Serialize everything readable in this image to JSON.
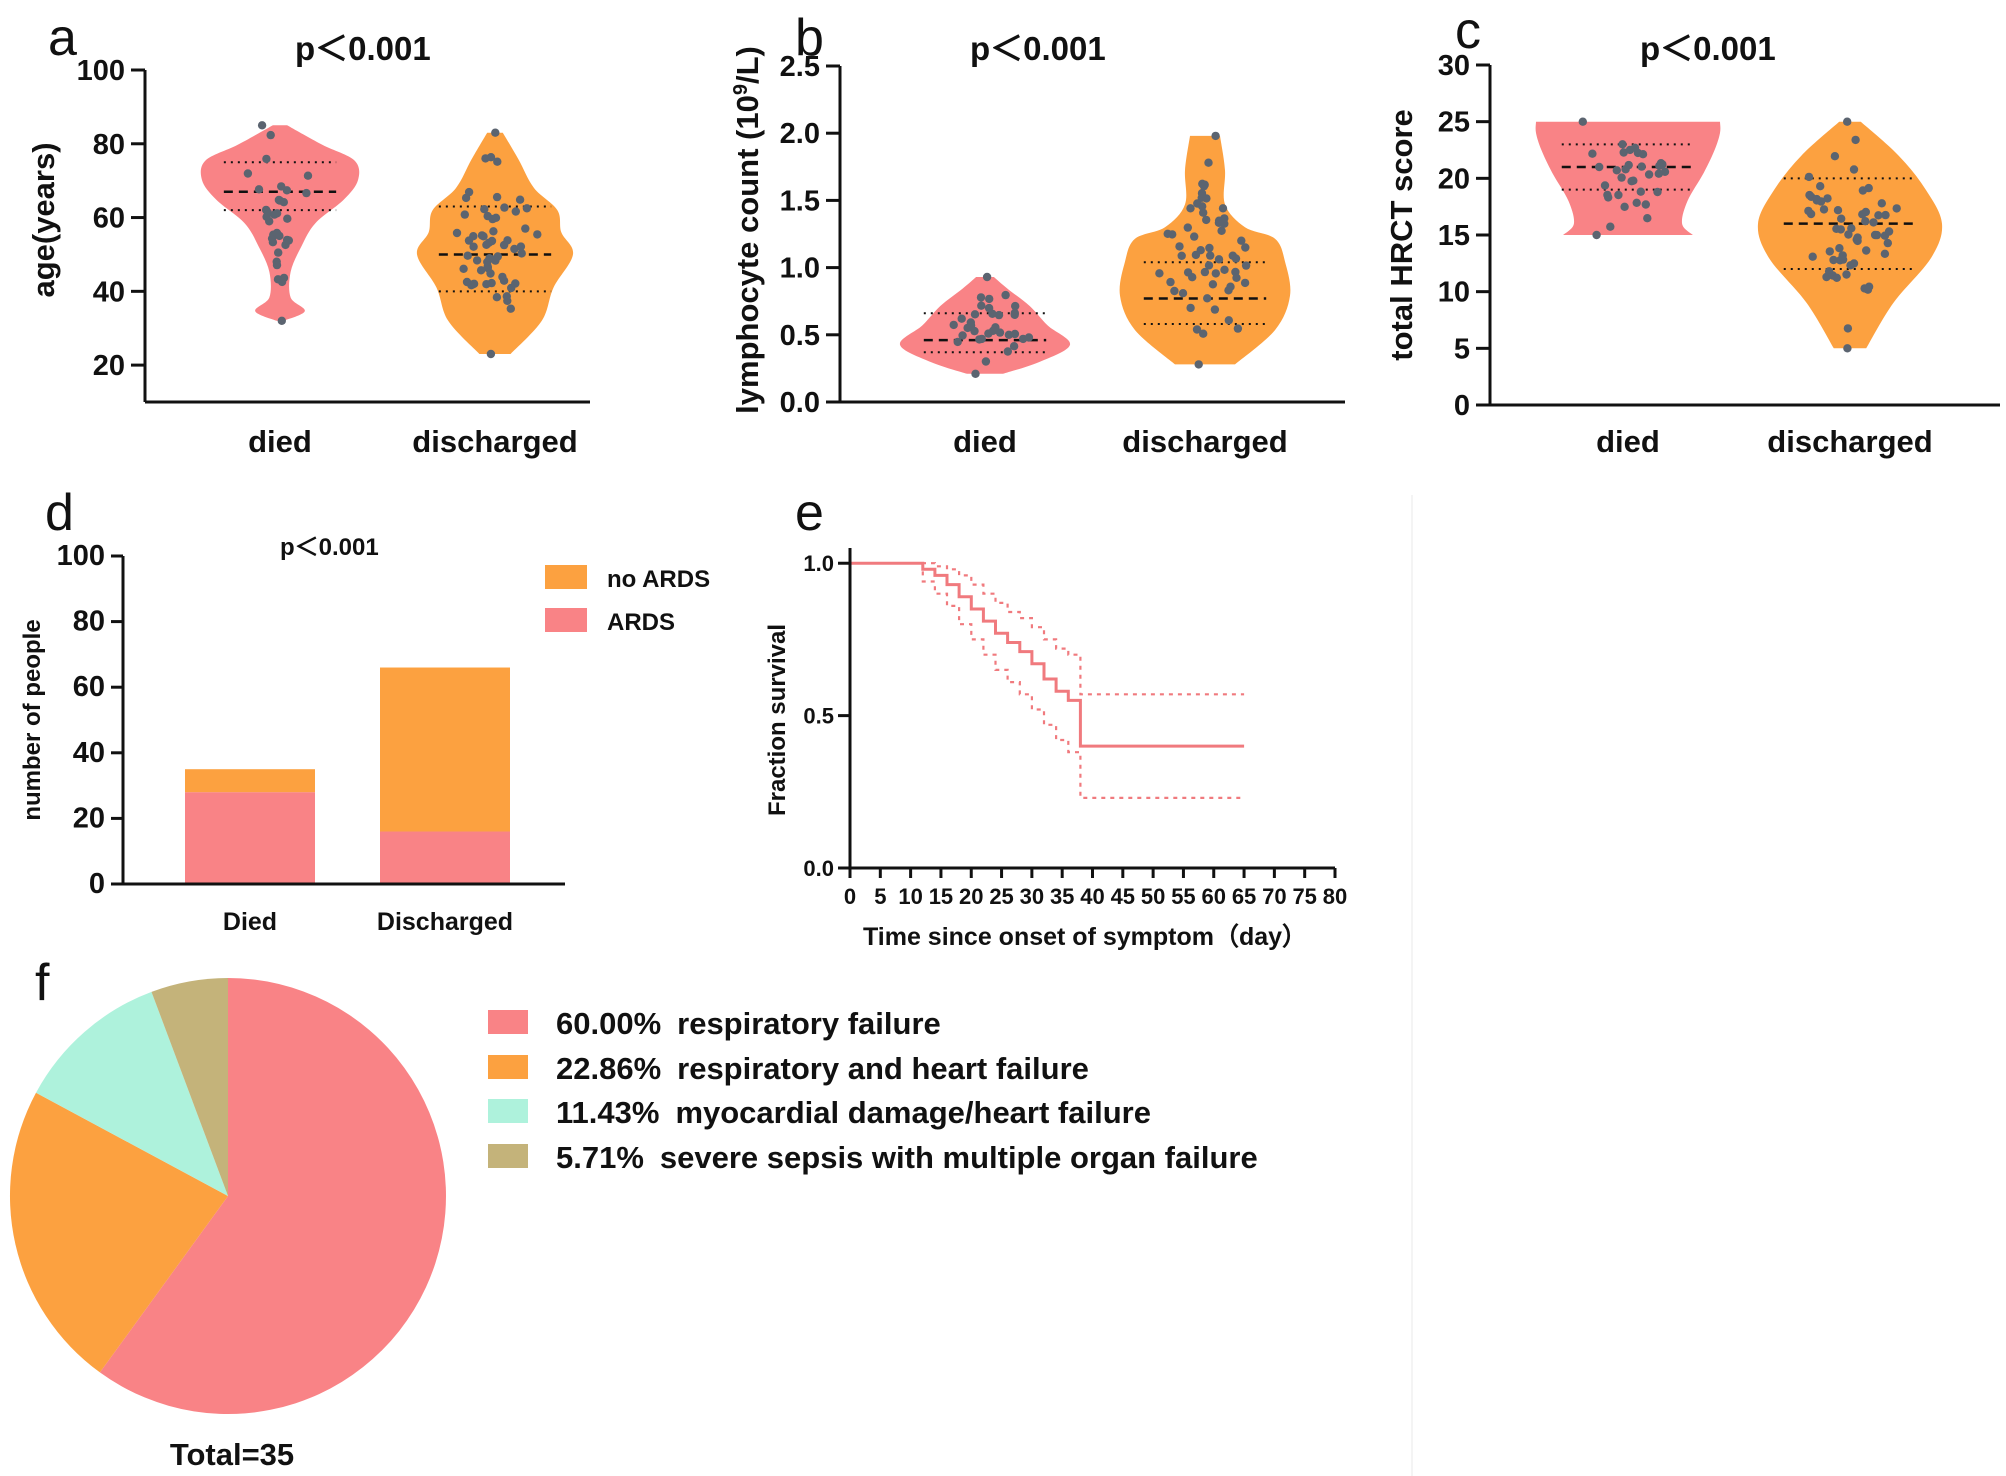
{
  "colors": {
    "died": "#f98386",
    "discharged": "#fca140",
    "teal": "#aef2dc",
    "olive": "#c4b37a",
    "km": "#f07a7e"
  },
  "chart_data": [
    {
      "panel": "a",
      "type": "violin",
      "p_text": "p<0.001",
      "ylabel": "age(years)",
      "ylim": [
        10,
        100
      ],
      "yticks": [
        20,
        40,
        60,
        80,
        100
      ],
      "categories": [
        "died",
        "discharged"
      ],
      "series": [
        {
          "name": "died",
          "min": 32,
          "max": 85,
          "median": 67,
          "q1": 62,
          "q3": 75
        },
        {
          "name": "discharged",
          "min": 23,
          "max": 83,
          "median": 50,
          "q1": 40,
          "q3": 63
        }
      ]
    },
    {
      "panel": "b",
      "type": "violin",
      "p_text": "p<0.001",
      "ylabel_main": "lymphocyte count (10",
      "ylabel_sup": "9",
      "ylabel_tail": "/L)",
      "ylim": [
        0,
        2.5
      ],
      "yticks": [
        "0.0",
        "0.5",
        "1.0",
        "1.5",
        "2.0",
        "2.5"
      ],
      "categories": [
        "died",
        "discharged"
      ],
      "series": [
        {
          "name": "died",
          "min": 0.21,
          "max": 0.93,
          "median": 0.46,
          "q1": 0.37,
          "q3": 0.66
        },
        {
          "name": "discharged",
          "min": 0.28,
          "max": 1.98,
          "median": 0.77,
          "q1": 0.58,
          "q3": 1.04
        }
      ]
    },
    {
      "panel": "c",
      "type": "violin",
      "p_text": "p<0.001",
      "ylabel": "total HRCT score",
      "ylim": [
        0,
        30
      ],
      "yticks": [
        0,
        5,
        10,
        15,
        20,
        25,
        30
      ],
      "categories": [
        "died",
        "discharged"
      ],
      "series": [
        {
          "name": "died",
          "min": 15,
          "max": 25,
          "median": 21,
          "q1": 19,
          "q3": 23
        },
        {
          "name": "discharged",
          "min": 5,
          "max": 25,
          "median": 16,
          "q1": 12,
          "q3": 20
        }
      ]
    },
    {
      "panel": "d",
      "type": "bar",
      "stacked": true,
      "p_text": "p<0.001",
      "ylabel": "number of people",
      "ylim": [
        0,
        100
      ],
      "yticks": [
        0,
        20,
        40,
        60,
        80,
        100
      ],
      "categories": [
        "Died",
        "Discharged"
      ],
      "series": [
        {
          "name": "ARDS",
          "values": [
            28,
            16
          ]
        },
        {
          "name": "no ARDS",
          "values": [
            7,
            50
          ]
        }
      ],
      "legend": [
        "no ARDS",
        "ARDS"
      ]
    },
    {
      "panel": "e",
      "type": "line",
      "subtype": "kaplan-meier",
      "xlabel": "Time since onset of symptom（day）",
      "ylabel": "Fraction survival",
      "xlim": [
        0,
        80
      ],
      "ylim": [
        0,
        1.05
      ],
      "xticks": [
        0,
        5,
        10,
        15,
        20,
        25,
        30,
        35,
        40,
        45,
        50,
        55,
        60,
        65,
        70,
        75,
        80
      ],
      "yticks": [
        "0.0",
        "0.5",
        "1.0"
      ],
      "series": [
        {
          "name": "survival",
          "x": [
            0,
            12,
            14,
            16,
            18,
            20,
            22,
            24,
            26,
            28,
            30,
            32,
            34,
            36,
            38,
            65
          ],
          "y": [
            1.0,
            0.98,
            0.96,
            0.93,
            0.89,
            0.85,
            0.81,
            0.77,
            0.74,
            0.71,
            0.67,
            0.62,
            0.58,
            0.55,
            0.4,
            0.4
          ]
        },
        {
          "name": "upper 95% CI",
          "x": [
            0,
            12,
            14,
            16,
            18,
            20,
            22,
            24,
            26,
            28,
            30,
            32,
            34,
            36,
            38,
            65
          ],
          "y": [
            1.0,
            1.0,
            0.99,
            0.98,
            0.96,
            0.93,
            0.9,
            0.87,
            0.84,
            0.82,
            0.79,
            0.75,
            0.72,
            0.7,
            0.57,
            0.57
          ]
        },
        {
          "name": "lower 95% CI",
          "x": [
            0,
            12,
            14,
            16,
            18,
            20,
            22,
            24,
            26,
            28,
            30,
            32,
            34,
            36,
            38,
            65
          ],
          "y": [
            1.0,
            0.94,
            0.9,
            0.86,
            0.8,
            0.75,
            0.7,
            0.65,
            0.61,
            0.57,
            0.52,
            0.47,
            0.42,
            0.38,
            0.23,
            0.23
          ]
        }
      ]
    },
    {
      "panel": "f",
      "type": "pie",
      "total_label": "Total=35",
      "slices": [
        {
          "pct": "60.00%",
          "value": 60.0,
          "label": "respiratory failure"
        },
        {
          "pct": "22.86%",
          "value": 22.86,
          "label": "respiratory and heart failure"
        },
        {
          "pct": "11.43%",
          "value": 11.43,
          "label": "myocardial damage/heart failure"
        },
        {
          "pct": "5.71%",
          "value": 5.71,
          "label": "severe sepsis with multiple organ failure"
        }
      ]
    }
  ]
}
